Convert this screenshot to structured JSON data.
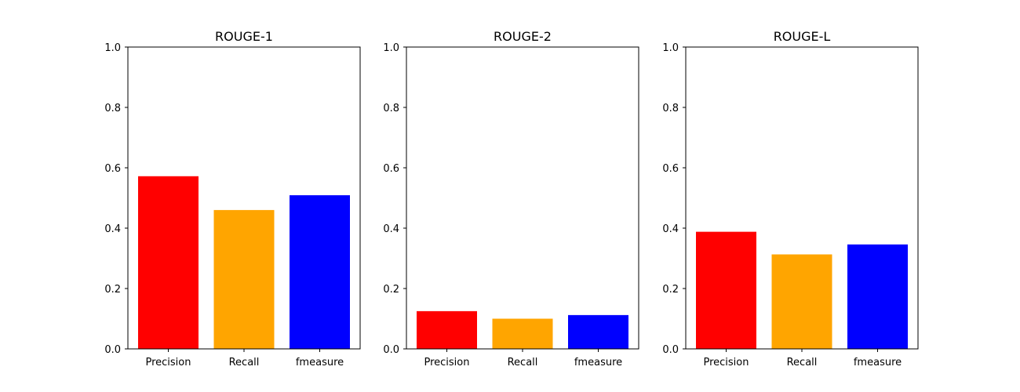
{
  "chart_data": [
    {
      "type": "bar",
      "title": "ROUGE-1",
      "categories": [
        "Precision",
        "Recall",
        "fmeasure"
      ],
      "values": [
        0.572,
        0.46,
        0.509
      ],
      "colors": [
        "#ff0000",
        "#ffa500",
        "#0000ff"
      ],
      "ylim": [
        0,
        1
      ],
      "yticks": [
        "0.0",
        "0.2",
        "0.4",
        "0.6",
        "0.8",
        "1.0"
      ],
      "xlabel": "",
      "ylabel": "",
      "grid": false
    },
    {
      "type": "bar",
      "title": "ROUGE-2",
      "categories": [
        "Precision",
        "Recall",
        "fmeasure"
      ],
      "values": [
        0.125,
        0.1,
        0.112
      ],
      "colors": [
        "#ff0000",
        "#ffa500",
        "#0000ff"
      ],
      "ylim": [
        0,
        1
      ],
      "yticks": [
        "0.0",
        "0.2",
        "0.4",
        "0.6",
        "0.8",
        "1.0"
      ],
      "xlabel": "",
      "ylabel": "",
      "grid": false
    },
    {
      "type": "bar",
      "title": "ROUGE-L",
      "categories": [
        "Precision",
        "Recall",
        "fmeasure"
      ],
      "values": [
        0.388,
        0.313,
        0.346
      ],
      "colors": [
        "#ff0000",
        "#ffa500",
        "#0000ff"
      ],
      "ylim": [
        0,
        1
      ],
      "yticks": [
        "0.0",
        "0.2",
        "0.4",
        "0.6",
        "0.8",
        "1.0"
      ],
      "xlabel": "",
      "ylabel": "",
      "grid": false
    }
  ]
}
